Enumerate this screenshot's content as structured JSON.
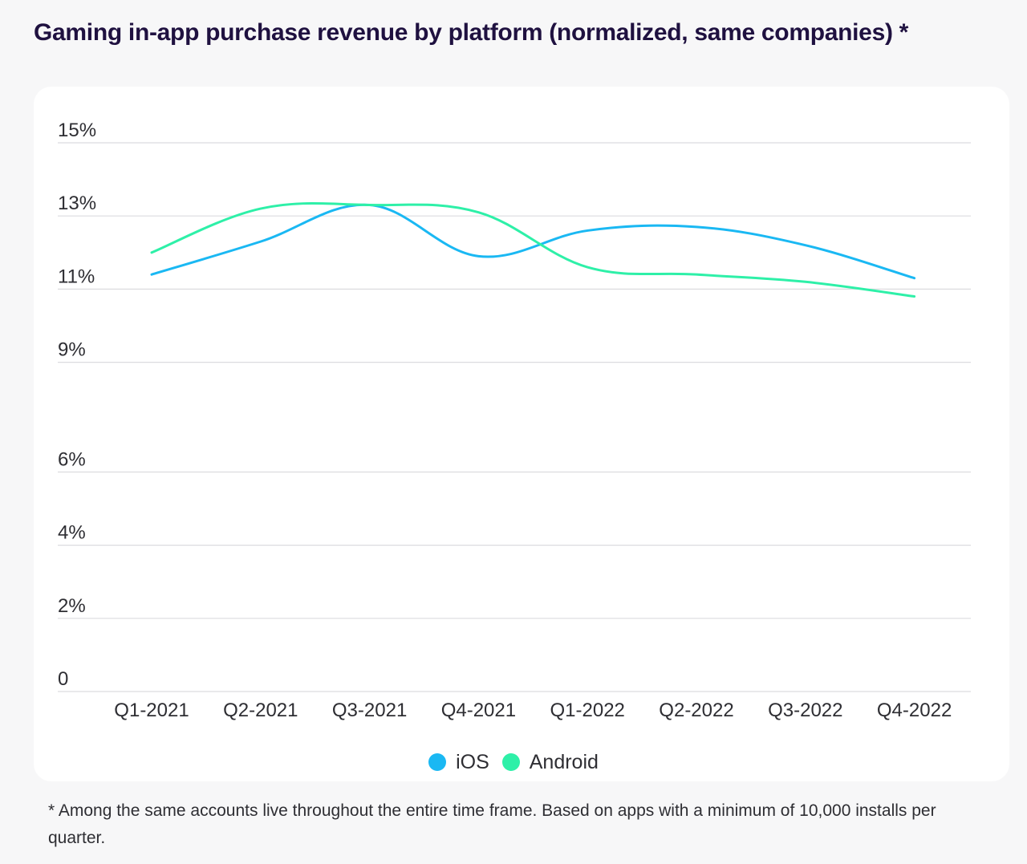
{
  "title": "Gaming in-app purchase revenue by platform (normalized, same companies) *",
  "footnote": "* Among the same accounts live throughout the entire time frame. Based on apps with a minimum of 10,000 installs per quarter.",
  "chart_data": {
    "type": "line",
    "title": "Gaming in-app purchase revenue by platform (normalized, same companies) *",
    "xlabel": "",
    "ylabel": "",
    "categories": [
      "Q1-2021",
      "Q2-2021",
      "Q3-2021",
      "Q4-2021",
      "Q1-2022",
      "Q2-2022",
      "Q3-2022",
      "Q4-2022"
    ],
    "y_ticks": [
      {
        "label": "0",
        "value": 0
      },
      {
        "label": "2%",
        "value": 2
      },
      {
        "label": "4%",
        "value": 4
      },
      {
        "label": "6%",
        "value": 6
      },
      {
        "label": "9%",
        "value": 9
      },
      {
        "label": "11%",
        "value": 11
      },
      {
        "label": "13%",
        "value": 13
      },
      {
        "label": "15%",
        "value": 15
      }
    ],
    "ylim": [
      0,
      15
    ],
    "grid": true,
    "legend_position": "bottom-center",
    "series": [
      {
        "name": "iOS",
        "color": "#1ab8f3",
        "values": [
          11.4,
          12.3,
          13.3,
          11.9,
          12.6,
          12.7,
          12.2,
          11.3
        ]
      },
      {
        "name": "Android",
        "color": "#2ef0a8",
        "values": [
          12.0,
          13.2,
          13.3,
          13.1,
          11.6,
          11.4,
          11.2,
          10.8
        ]
      }
    ]
  }
}
